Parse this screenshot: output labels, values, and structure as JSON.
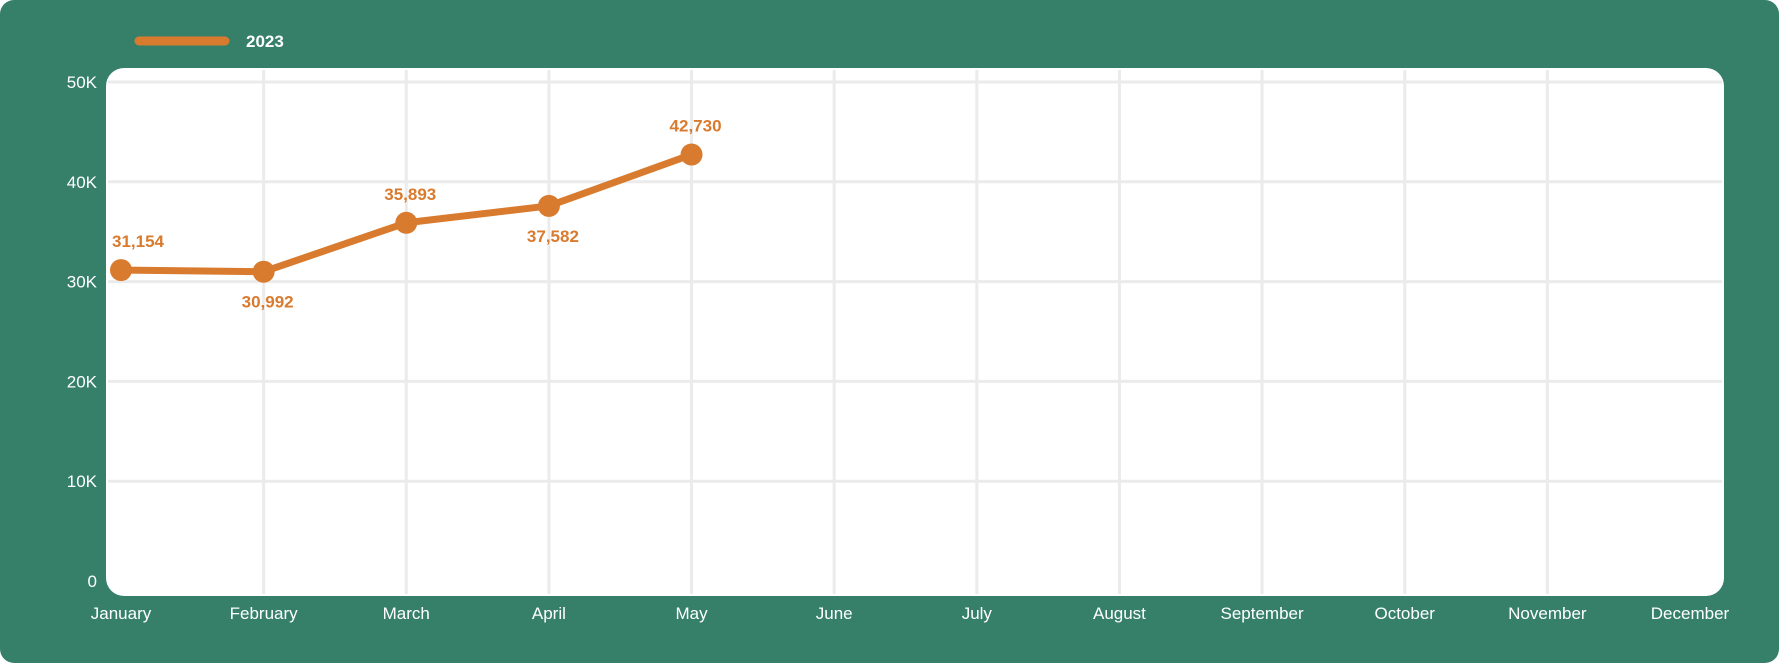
{
  "chart_data": {
    "type": "line",
    "categories": [
      "January",
      "February",
      "March",
      "April",
      "May",
      "June",
      "July",
      "August",
      "September",
      "October",
      "November",
      "December"
    ],
    "series": [
      {
        "name": "2023",
        "values": [
          31154,
          30992,
          35893,
          37582,
          42730,
          null,
          null,
          null,
          null,
          null,
          null,
          null
        ]
      }
    ],
    "data_labels": [
      "31,154",
      "30,992",
      "35,893",
      "37,582",
      "42,730"
    ],
    "y_ticks": [
      0,
      10000,
      20000,
      30000,
      40000,
      50000
    ],
    "y_tick_labels": [
      "0",
      "10K",
      "20K",
      "30K",
      "40K",
      "50K"
    ],
    "ylim": [
      0,
      50000
    ],
    "legend": {
      "placement": "top-left"
    },
    "grid": true
  },
  "colors": {
    "frame": "#36806a",
    "plot_background": "#ffffff",
    "grid": "#ebebeb",
    "series": "#d97b2e",
    "axis_text": "#ffffff"
  }
}
